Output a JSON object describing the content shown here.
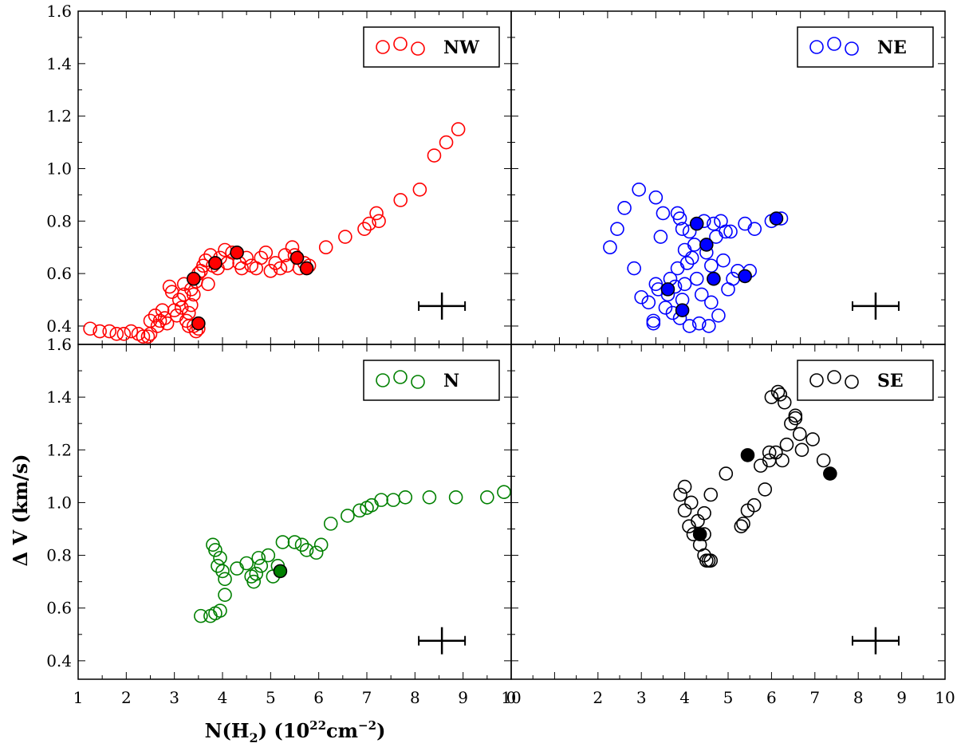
{
  "figure": {
    "ylabel": "Δ V (km/s)",
    "xlabel_main": "N(H",
    "xlabel_sub": "2",
    "xlabel_mid": ") (10",
    "xlabel_sup1": "22",
    "xlabel_unit": "cm",
    "xlabel_sup2": "−2",
    "xlabel_close": ")"
  },
  "chart_data": [
    {
      "type": "scatter",
      "legend": "NW",
      "color": "#ff0000",
      "xlim": [
        1,
        10
      ],
      "ylim": [
        0.33,
        1.6
      ],
      "xticks": [],
      "yticks": [
        "0.4",
        "0.6",
        "0.8",
        "1.0",
        "1.2",
        "1.4",
        "1.6"
      ],
      "grid": false,
      "legend_position": "top-right",
      "points": [
        [
          1.25,
          0.39
        ],
        [
          1.45,
          0.38
        ],
        [
          1.65,
          0.38
        ],
        [
          1.8,
          0.37
        ],
        [
          1.95,
          0.37
        ],
        [
          2.1,
          0.38
        ],
        [
          2.25,
          0.37
        ],
        [
          2.35,
          0.36
        ],
        [
          2.45,
          0.36
        ],
        [
          2.5,
          0.37
        ],
        [
          2.5,
          0.42
        ],
        [
          2.6,
          0.44
        ],
        [
          2.65,
          0.4
        ],
        [
          2.7,
          0.42
        ],
        [
          2.75,
          0.46
        ],
        [
          2.8,
          0.43
        ],
        [
          2.85,
          0.41
        ],
        [
          2.9,
          0.55
        ],
        [
          2.95,
          0.53
        ],
        [
          3.0,
          0.46
        ],
        [
          3.05,
          0.44
        ],
        [
          3.1,
          0.5
        ],
        [
          3.15,
          0.47
        ],
        [
          3.2,
          0.52
        ],
        [
          3.2,
          0.56
        ],
        [
          3.25,
          0.42
        ],
        [
          3.3,
          0.4
        ],
        [
          3.3,
          0.45
        ],
        [
          3.35,
          0.48
        ],
        [
          3.35,
          0.54
        ],
        [
          3.4,
          0.52
        ],
        [
          3.4,
          0.4
        ],
        [
          3.45,
          0.38
        ],
        [
          3.45,
          0.57
        ],
        [
          3.5,
          0.6
        ],
        [
          3.5,
          0.39
        ],
        [
          3.55,
          0.61
        ],
        [
          3.6,
          0.63
        ],
        [
          3.65,
          0.65
        ],
        [
          3.7,
          0.56
        ],
        [
          3.75,
          0.67
        ],
        [
          3.8,
          0.63
        ],
        [
          3.9,
          0.62
        ],
        [
          3.95,
          0.66
        ],
        [
          4.05,
          0.69
        ],
        [
          4.1,
          0.64
        ],
        [
          4.2,
          0.68
        ],
        [
          4.35,
          0.64
        ],
        [
          4.4,
          0.62
        ],
        [
          4.5,
          0.66
        ],
        [
          4.6,
          0.63
        ],
        [
          4.7,
          0.62
        ],
        [
          4.8,
          0.66
        ],
        [
          4.9,
          0.68
        ],
        [
          5.0,
          0.61
        ],
        [
          5.1,
          0.64
        ],
        [
          5.2,
          0.62
        ],
        [
          5.3,
          0.67
        ],
        [
          5.35,
          0.63
        ],
        [
          5.45,
          0.7
        ],
        [
          5.5,
          0.67
        ],
        [
          5.6,
          0.62
        ],
        [
          5.7,
          0.64
        ],
        [
          5.8,
          0.63
        ],
        [
          6.15,
          0.7
        ],
        [
          6.55,
          0.74
        ],
        [
          6.95,
          0.77
        ],
        [
          7.05,
          0.79
        ],
        [
          7.2,
          0.83
        ],
        [
          7.25,
          0.8
        ],
        [
          7.7,
          0.88
        ],
        [
          8.1,
          0.92
        ],
        [
          8.4,
          1.05
        ],
        [
          8.65,
          1.1
        ],
        [
          8.9,
          1.15
        ]
      ],
      "filled": [
        [
          3.4,
          0.58
        ],
        [
          3.5,
          0.41
        ],
        [
          3.85,
          0.64
        ],
        [
          4.3,
          0.68
        ],
        [
          5.55,
          0.66
        ],
        [
          5.75,
          0.62
        ]
      ]
    },
    {
      "type": "scatter",
      "legend": "NE",
      "color": "#0000ff",
      "xlim": [
        1,
        10
      ],
      "ylim": [
        0.33,
        1.6
      ],
      "xticks": [],
      "yticks": [],
      "grid": false,
      "legend_position": "top-right",
      "points": [
        [
          3.05,
          0.7
        ],
        [
          3.2,
          0.77
        ],
        [
          3.35,
          0.85
        ],
        [
          3.55,
          0.62
        ],
        [
          3.65,
          0.92
        ],
        [
          3.7,
          0.51
        ],
        [
          3.85,
          0.49
        ],
        [
          3.95,
          0.42
        ],
        [
          3.95,
          0.41
        ],
        [
          4.0,
          0.89
        ],
        [
          4.0,
          0.56
        ],
        [
          4.05,
          0.54
        ],
        [
          4.1,
          0.74
        ],
        [
          4.15,
          0.83
        ],
        [
          4.2,
          0.47
        ],
        [
          4.25,
          0.52
        ],
        [
          4.3,
          0.58
        ],
        [
          4.35,
          0.45
        ],
        [
          4.4,
          0.55
        ],
        [
          4.45,
          0.83
        ],
        [
          4.45,
          0.62
        ],
        [
          4.5,
          0.81
        ],
        [
          4.5,
          0.43
        ],
        [
          4.55,
          0.77
        ],
        [
          4.55,
          0.5
        ],
        [
          4.6,
          0.69
        ],
        [
          4.6,
          0.56
        ],
        [
          4.65,
          0.64
        ],
        [
          4.7,
          0.76
        ],
        [
          4.7,
          0.4
        ],
        [
          4.75,
          0.66
        ],
        [
          4.8,
          0.71
        ],
        [
          4.85,
          0.58
        ],
        [
          4.9,
          0.41
        ],
        [
          4.95,
          0.52
        ],
        [
          5.0,
          0.8
        ],
        [
          5.05,
          0.68
        ],
        [
          5.1,
          0.4
        ],
        [
          5.15,
          0.49
        ],
        [
          5.15,
          0.63
        ],
        [
          5.2,
          0.79
        ],
        [
          5.25,
          0.74
        ],
        [
          5.3,
          0.44
        ],
        [
          5.35,
          0.8
        ],
        [
          5.4,
          0.65
        ],
        [
          5.45,
          0.76
        ],
        [
          5.5,
          0.54
        ],
        [
          5.55,
          0.76
        ],
        [
          5.6,
          0.58
        ],
        [
          5.7,
          0.61
        ],
        [
          5.85,
          0.79
        ],
        [
          5.95,
          0.61
        ],
        [
          6.05,
          0.77
        ],
        [
          6.4,
          0.8
        ],
        [
          6.6,
          0.81
        ]
      ],
      "filled": [
        [
          4.25,
          0.54
        ],
        [
          4.55,
          0.46
        ],
        [
          4.85,
          0.79
        ],
        [
          5.05,
          0.71
        ],
        [
          5.2,
          0.58
        ],
        [
          5.85,
          0.59
        ],
        [
          6.5,
          0.81
        ]
      ]
    },
    {
      "type": "scatter",
      "legend": "N",
      "color": "#008000",
      "xlim": [
        1,
        10
      ],
      "ylim": [
        0.33,
        1.6
      ],
      "xticks": [
        "1",
        "2",
        "3",
        "4",
        "5",
        "6",
        "7",
        "8",
        "9",
        "10"
      ],
      "yticks": [
        "0.4",
        "0.6",
        "0.8",
        "1.0",
        "1.2",
        "1.4",
        "1.6"
      ],
      "grid": false,
      "legend_position": "top-right",
      "points": [
        [
          3.55,
          0.57
        ],
        [
          3.75,
          0.57
        ],
        [
          3.8,
          0.84
        ],
        [
          3.85,
          0.82
        ],
        [
          3.85,
          0.58
        ],
        [
          3.9,
          0.76
        ],
        [
          3.95,
          0.79
        ],
        [
          3.95,
          0.59
        ],
        [
          4.0,
          0.74
        ],
        [
          4.05,
          0.65
        ],
        [
          4.05,
          0.71
        ],
        [
          4.3,
          0.75
        ],
        [
          4.5,
          0.77
        ],
        [
          4.6,
          0.72
        ],
        [
          4.65,
          0.7
        ],
        [
          4.7,
          0.73
        ],
        [
          4.75,
          0.79
        ],
        [
          4.8,
          0.76
        ],
        [
          4.95,
          0.8
        ],
        [
          5.05,
          0.72
        ],
        [
          5.15,
          0.76
        ],
        [
          5.25,
          0.85
        ],
        [
          5.5,
          0.85
        ],
        [
          5.65,
          0.84
        ],
        [
          5.75,
          0.82
        ],
        [
          5.95,
          0.81
        ],
        [
          6.05,
          0.84
        ],
        [
          6.25,
          0.92
        ],
        [
          6.6,
          0.95
        ],
        [
          6.85,
          0.97
        ],
        [
          7.0,
          0.98
        ],
        [
          7.1,
          0.99
        ],
        [
          7.3,
          1.01
        ],
        [
          7.55,
          1.01
        ],
        [
          7.8,
          1.02
        ],
        [
          8.3,
          1.02
        ],
        [
          8.85,
          1.02
        ],
        [
          9.5,
          1.02
        ],
        [
          9.85,
          1.04
        ]
      ],
      "filled": [
        [
          5.2,
          0.74
        ]
      ]
    },
    {
      "type": "scatter",
      "legend": "SE",
      "color": "#000000",
      "xlim": [
        0,
        10
      ],
      "ylim": [
        0.33,
        1.6
      ],
      "xticks": [
        "0",
        "2",
        "3",
        "4",
        "5",
        "6",
        "7",
        "8",
        "9",
        "10"
      ],
      "yticks": [],
      "grid": false,
      "legend_position": "top-right",
      "points": [
        [
          3.9,
          1.03
        ],
        [
          4.0,
          1.06
        ],
        [
          4.0,
          0.97
        ],
        [
          4.1,
          0.91
        ],
        [
          4.15,
          1.0
        ],
        [
          4.2,
          0.88
        ],
        [
          4.3,
          0.93
        ],
        [
          4.35,
          0.84
        ],
        [
          4.45,
          0.8
        ],
        [
          4.45,
          0.96
        ],
        [
          4.5,
          0.78
        ],
        [
          4.55,
          0.78
        ],
        [
          4.6,
          1.03
        ],
        [
          4.6,
          0.78
        ],
        [
          4.45,
          0.88
        ],
        [
          4.95,
          1.11
        ],
        [
          5.3,
          0.91
        ],
        [
          5.35,
          0.92
        ],
        [
          5.45,
          0.97
        ],
        [
          5.6,
          0.99
        ],
        [
          5.75,
          1.14
        ],
        [
          5.85,
          1.05
        ],
        [
          5.95,
          1.19
        ],
        [
          5.95,
          1.16
        ],
        [
          6.0,
          1.4
        ],
        [
          6.1,
          1.19
        ],
        [
          6.15,
          1.42
        ],
        [
          6.2,
          1.41
        ],
        [
          6.25,
          1.16
        ],
        [
          6.3,
          1.38
        ],
        [
          6.35,
          1.22
        ],
        [
          6.45,
          1.3
        ],
        [
          6.55,
          1.33
        ],
        [
          6.55,
          1.32
        ],
        [
          6.65,
          1.26
        ],
        [
          6.7,
          1.2
        ],
        [
          6.95,
          1.24
        ],
        [
          7.2,
          1.16
        ]
      ],
      "filled": [
        [
          4.35,
          0.88
        ],
        [
          5.45,
          1.18
        ],
        [
          7.35,
          1.11
        ]
      ]
    }
  ]
}
